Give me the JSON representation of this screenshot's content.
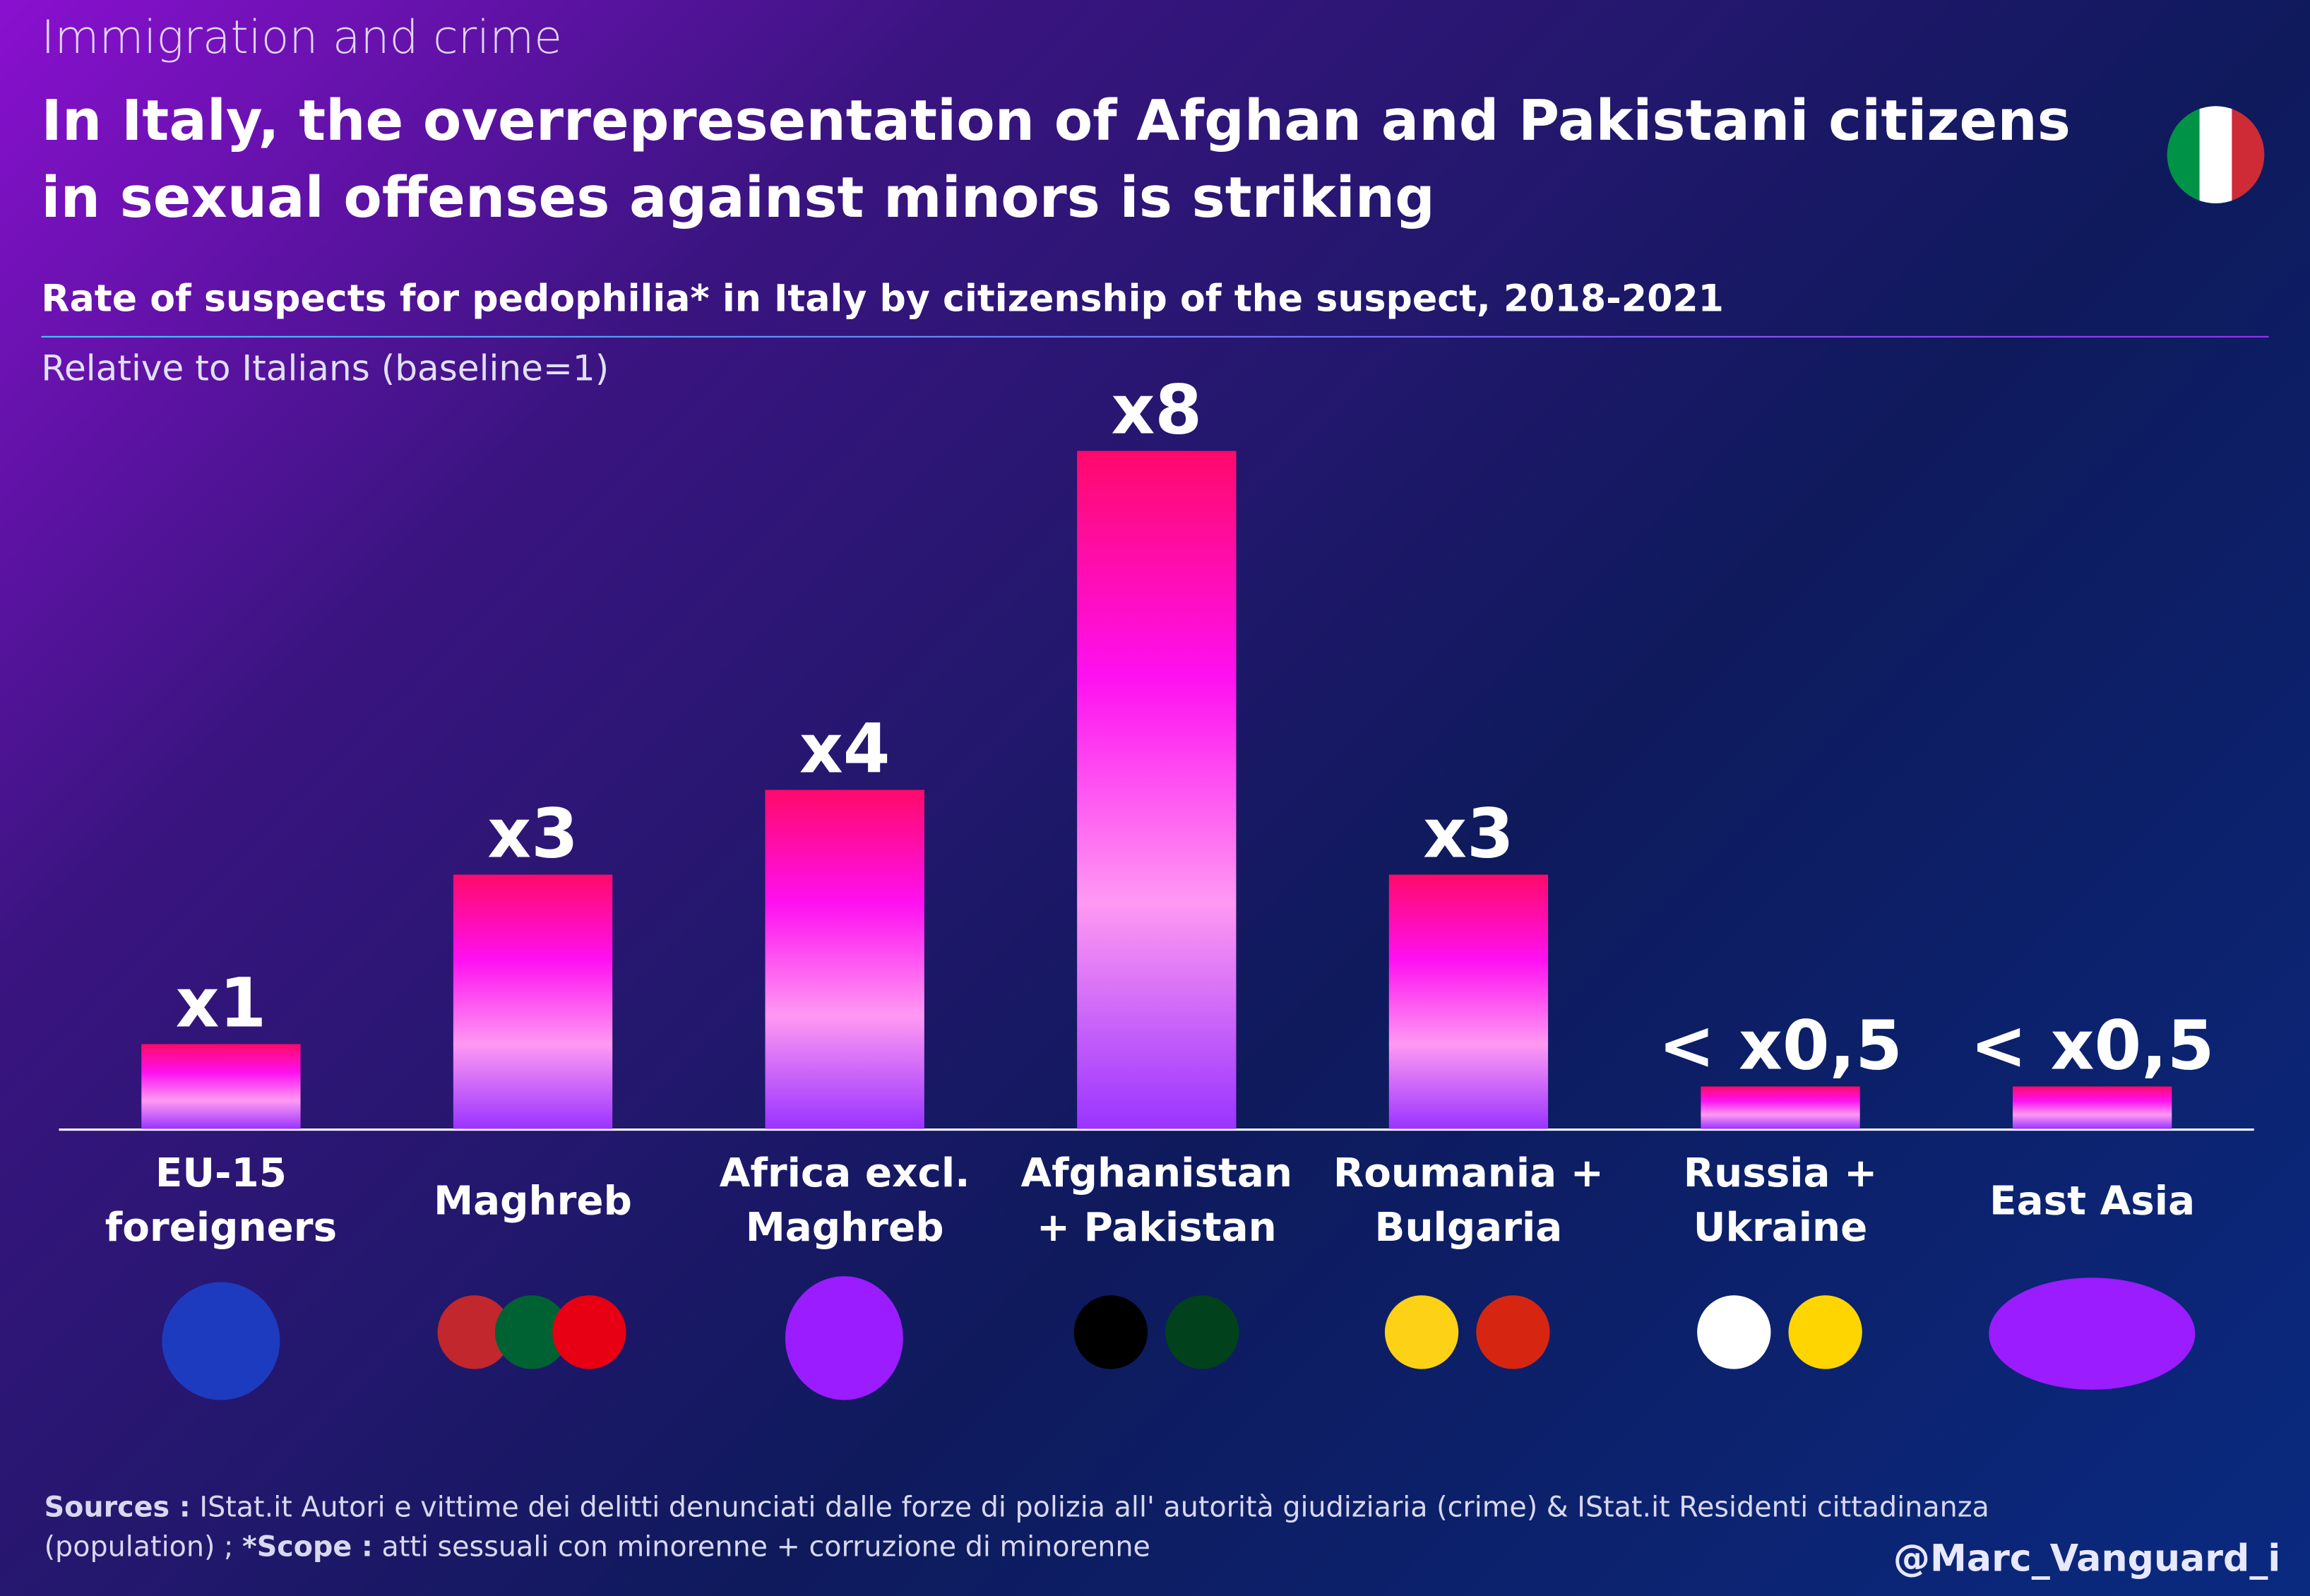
{
  "kicker": "Immigration and crime",
  "chart_data": {
    "type": "bar",
    "title": "In Italy, the overrepresentation of Afghan and Pakistani citizens in sexual offenses against minors is striking",
    "subtitle": "Rate of suspects for pedophilia* in Italy by citizenship of the suspect, 2018-2021",
    "axis_note": "Relative to Italians (baseline=1)",
    "categories": [
      "EU-15 foreigners",
      "Maghreb",
      "Africa excl. Maghreb",
      "Afghanistan + Pakistan",
      "Roumania + Bulgaria",
      "Russia + Ukraine",
      "East Asia"
    ],
    "values": [
      1,
      3,
      4,
      8,
      3,
      0.5,
      0.5
    ],
    "value_labels": [
      "x1",
      "x3",
      "x4",
      "x8",
      "x3",
      "< x0,5",
      "< x0,5"
    ],
    "gradient": [
      "#ff0a6a",
      "#ff10f0",
      "#ff99f2",
      "#9a34ff"
    ]
  },
  "sources": {
    "label": "Sources :",
    "text": "IStat.it Autori e vittime dei delitti denunciati dalle forze di polizia all' autorità giudiziaria (crime) & IStat.it Residenti cittadinanza (population) ;",
    "scope_label": "*Scope :",
    "scope_text": "atti sessuali con minorenne + corruzione di minorenne"
  },
  "handle": "@Marc_Vanguard_i"
}
